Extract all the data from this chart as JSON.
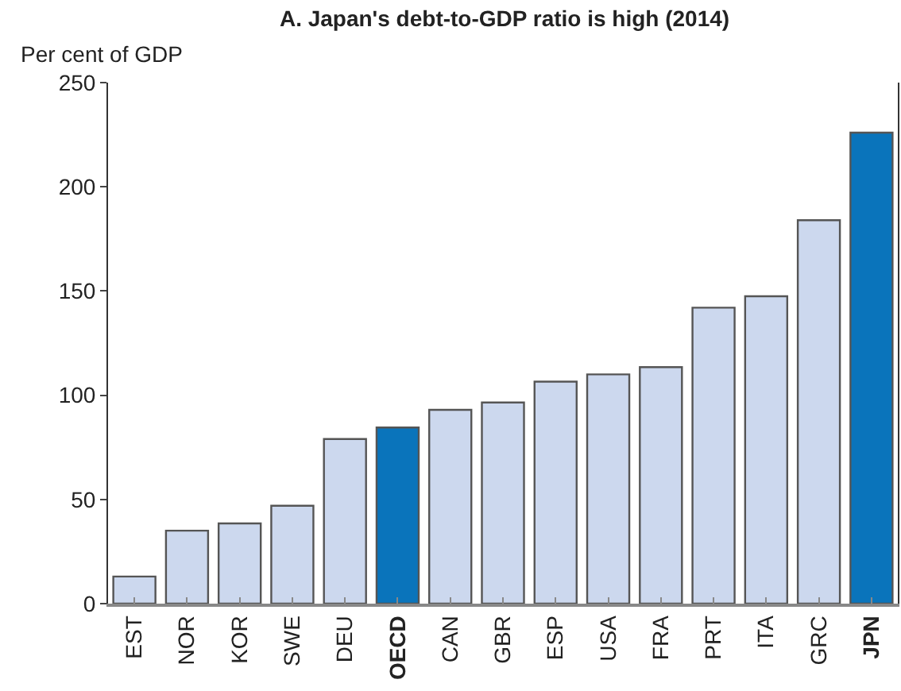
{
  "chart_data": {
    "type": "bar",
    "title": "A. Japan's debt-to-GDP ratio is high (2014)",
    "ylabel": "Per cent of GDP",
    "categories": [
      "EST",
      "NOR",
      "KOR",
      "SWE",
      "DEU",
      "OECD",
      "CAN",
      "GBR",
      "ESP",
      "USA",
      "FRA",
      "PRT",
      "ITA",
      "GRC",
      "JPN"
    ],
    "values": [
      13,
      35,
      38.5,
      47,
      79,
      84.5,
      93,
      96.5,
      106.5,
      110,
      113.5,
      142,
      147.5,
      184,
      226
    ],
    "colors": [
      "#ccd8ee",
      "#ccd8ee",
      "#ccd8ee",
      "#ccd8ee",
      "#ccd8ee",
      "#0a74bb",
      "#ccd8ee",
      "#ccd8ee",
      "#ccd8ee",
      "#ccd8ee",
      "#ccd8ee",
      "#ccd8ee",
      "#ccd8ee",
      "#ccd8ee",
      "#0a74bb"
    ],
    "ylim": [
      0,
      250
    ],
    "yticks": [
      0,
      50,
      100,
      150,
      200,
      250
    ],
    "grid": false,
    "legend": false
  }
}
